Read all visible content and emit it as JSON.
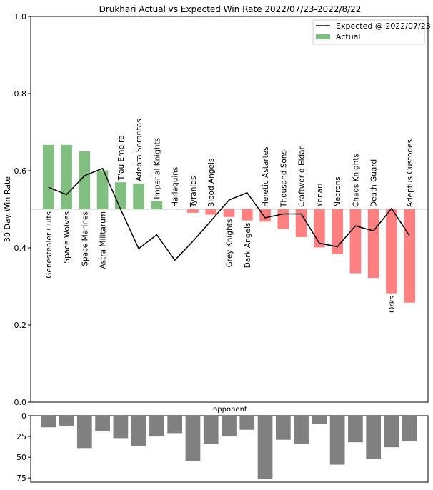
{
  "chart_data": [
    {
      "type": "bar",
      "title": "Drukhari Actual vs Expected Win Rate 2022/07/23-2022/8/22",
      "xlabel": "",
      "ylabel": "30 Day Win Rate",
      "ylim": [
        0,
        1.0
      ],
      "yticks": [
        "0.0",
        "0.2",
        "0.4",
        "0.6",
        "0.8",
        "1.0"
      ],
      "ytick_values": [
        0.0,
        0.2,
        0.4,
        0.6,
        0.8,
        1.0
      ],
      "baseline": 0.5,
      "grid": false,
      "legend": {
        "placement": "top-right",
        "entries": [
          "Expected @ 2022/07/23",
          "Actual"
        ]
      },
      "colors": {
        "above": "#81bf81",
        "below": "#ff8080",
        "line": "#000000",
        "baseline": "#c8c8c8"
      },
      "categories": [
        "Genestealer Cults",
        "Space Wolves",
        "Space Marines",
        "Astra Militarum",
        "T'au Empire",
        "Adepta Sororitas",
        "Imperial Knights",
        "Harlequins",
        "Tyranids",
        "Blood Angels",
        "Grey Knights",
        "Dark Angels",
        "Heretic Astartes",
        "Thousand Sons",
        "Craftworld Eldar",
        "Ynnari",
        "Necrons",
        "Chaos Knights",
        "Death Guard",
        "Orks",
        "Adeptus Custodes"
      ],
      "label_side": [
        "below",
        "below",
        "below",
        "below",
        "above",
        "above",
        "above",
        "above",
        "above",
        "above",
        "below",
        "below",
        "above",
        "above",
        "above",
        "above",
        "above",
        "above",
        "above",
        "below",
        "above"
      ],
      "series": [
        {
          "name": "Actual",
          "kind": "bar",
          "values": [
            0.667,
            0.667,
            0.65,
            0.601,
            0.57,
            0.567,
            0.521,
            0.5,
            0.491,
            0.486,
            0.48,
            0.471,
            0.468,
            0.449,
            0.428,
            0.401,
            0.384,
            0.334,
            0.322,
            0.282,
            0.258
          ]
        },
        {
          "name": "Expected @ 2022/07/23",
          "kind": "line",
          "values": [
            0.557,
            0.538,
            0.587,
            0.606,
            0.5,
            0.398,
            0.434,
            0.368,
            0.417,
            0.47,
            0.524,
            0.543,
            0.478,
            0.488,
            0.488,
            0.412,
            0.403,
            0.457,
            0.444,
            0.502,
            0.431
          ]
        }
      ]
    },
    {
      "type": "bar",
      "title": "opponent",
      "ylim": [
        80,
        0
      ],
      "yticks": [
        "0",
        "25",
        "50",
        "75"
      ],
      "ytick_values": [
        0,
        25,
        50,
        75
      ],
      "inverted_y": true,
      "color": "#808080",
      "categories": [
        "Genestealer Cults",
        "Space Wolves",
        "Space Marines",
        "Astra Militarum",
        "T'au Empire",
        "Adepta Sororitas",
        "Imperial Knights",
        "Harlequins",
        "Tyranids",
        "Blood Angels",
        "Grey Knights",
        "Dark Angels",
        "Heretic Astartes",
        "Thousand Sons",
        "Craftworld Eldar",
        "Ynnari",
        "Necrons",
        "Chaos Knights",
        "Death Guard",
        "Orks",
        "Adeptus Custodes"
      ],
      "values": [
        14,
        12,
        39,
        19,
        27,
        37,
        25,
        21,
        55,
        34,
        25,
        17,
        76,
        29,
        34,
        10,
        59,
        32,
        52,
        38,
        31
      ]
    }
  ]
}
